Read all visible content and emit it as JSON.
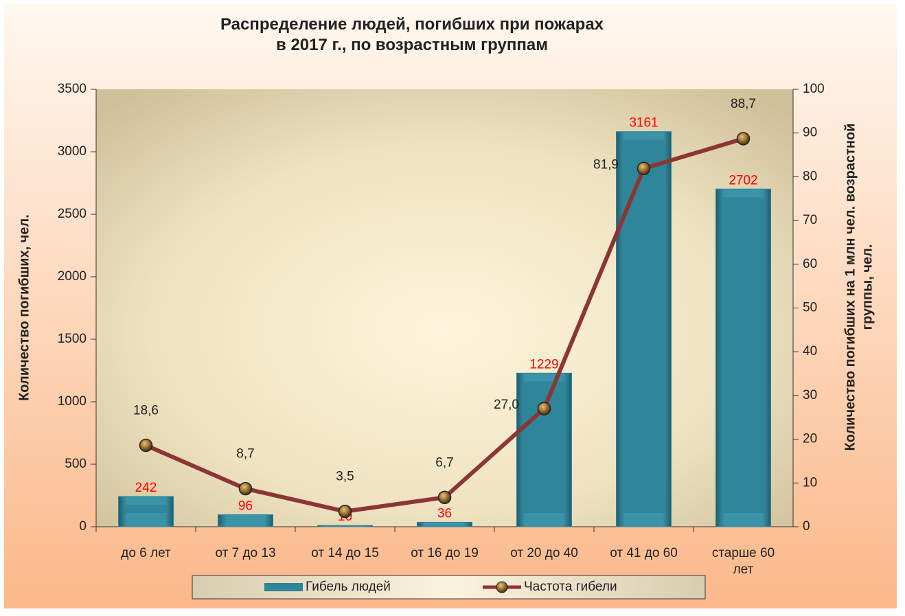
{
  "chart_data": {
    "type": "bar-line",
    "title": "Распределение людей, погибших при пожарах\nв 2017 г., по возрастным группам",
    "y_label": "Количество погибших, чел.",
    "y2_label": "Количество погибших на 1 млн чел. возрастной\nгруппы, чел.",
    "categories": [
      "до 6 лет",
      "от 7 до 13",
      "от 14 до 15",
      "от 16 до 19",
      "от 20 до 40",
      "от 41 до 60",
      "старше 60\nлет"
    ],
    "series": [
      {
        "name": "Гибель людей",
        "type": "bar",
        "color": "#2f8599",
        "values": [
          242,
          96,
          10,
          36,
          1229,
          3161,
          2702
        ],
        "label_color": "#ff0000"
      },
      {
        "name": "Частота гибели",
        "type": "line",
        "axis": "y2",
        "color": "#8b3535",
        "values": [
          18.6,
          8.7,
          3.5,
          6.7,
          27.0,
          81.9,
          88.7
        ],
        "value_labels": [
          "18,6",
          "8,7",
          "3,5",
          "6,7",
          "27,0",
          "81,9",
          "88,7"
        ],
        "label_color": "#222222"
      }
    ],
    "ylim": [
      0,
      3500
    ],
    "yticks": [
      0,
      500,
      1000,
      1500,
      2000,
      2500,
      3000,
      3500
    ],
    "y2lim": [
      0,
      100
    ],
    "y2ticks": [
      0,
      10,
      20,
      30,
      40,
      50,
      60,
      70,
      80,
      90,
      100
    ],
    "legend": "bottom"
  }
}
